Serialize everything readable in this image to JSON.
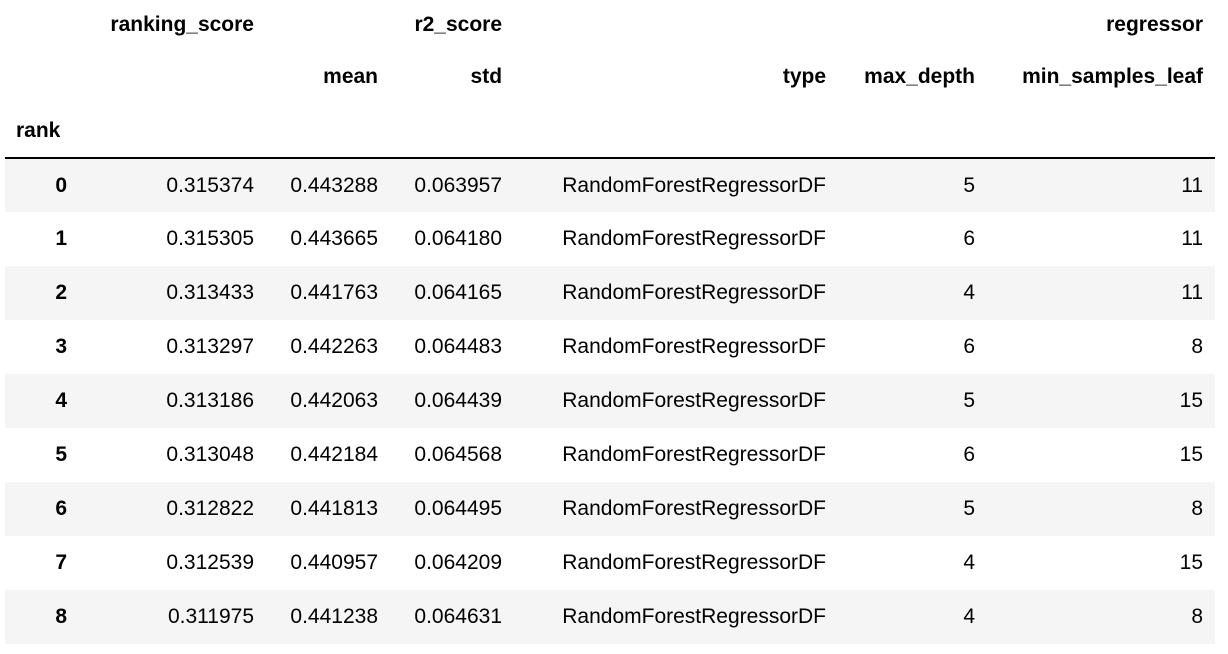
{
  "table": {
    "header": {
      "top": [
        "ranking_score",
        "r2_score",
        "regressor"
      ],
      "sub": [
        "mean",
        "std",
        "type",
        "max_depth",
        "min_samples_leaf"
      ],
      "index_name": "rank"
    },
    "rows": [
      [
        "0",
        "0.315374",
        "0.443288",
        "0.063957",
        "RandomForestRegressorDF",
        "5",
        "11"
      ],
      [
        "1",
        "0.315305",
        "0.443665",
        "0.064180",
        "RandomForestRegressorDF",
        "6",
        "11"
      ],
      [
        "2",
        "0.313433",
        "0.441763",
        "0.064165",
        "RandomForestRegressorDF",
        "4",
        "11"
      ],
      [
        "3",
        "0.313297",
        "0.442263",
        "0.064483",
        "RandomForestRegressorDF",
        "6",
        "8"
      ],
      [
        "4",
        "0.313186",
        "0.442063",
        "0.064439",
        "RandomForestRegressorDF",
        "5",
        "15"
      ],
      [
        "5",
        "0.313048",
        "0.442184",
        "0.064568",
        "RandomForestRegressorDF",
        "6",
        "15"
      ],
      [
        "6",
        "0.312822",
        "0.441813",
        "0.064495",
        "RandomForestRegressorDF",
        "5",
        "8"
      ],
      [
        "7",
        "0.312539",
        "0.440957",
        "0.064209",
        "RandomForestRegressorDF",
        "4",
        "15"
      ],
      [
        "8",
        "0.311975",
        "0.441238",
        "0.064631",
        "RandomForestRegressorDF",
        "4",
        "8"
      ]
    ]
  }
}
